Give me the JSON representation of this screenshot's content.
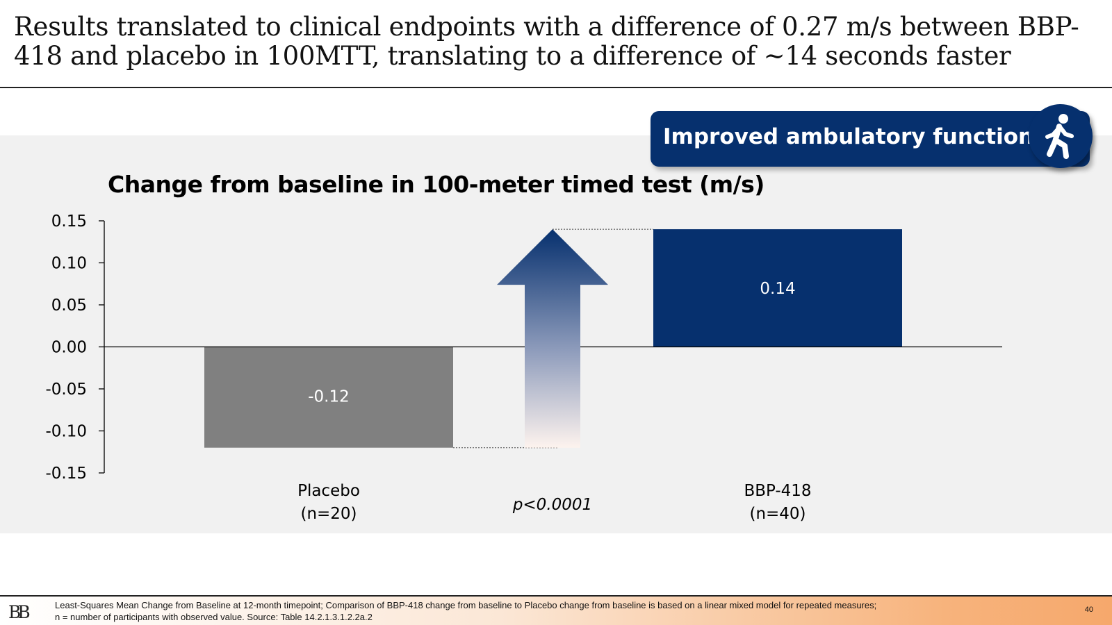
{
  "slide": {
    "title": "Results translated to clinical endpoints with a difference of 0.27 m/s between BBP-418 and placebo in 100MTT, translating to a difference of ~14 seconds faster",
    "callout": "Improved ambulatory function",
    "callout_icon": "walking-person-icon",
    "page_number": "40",
    "logo_text": "BB",
    "footnote_line1": "Least-Squares Mean Change from Baseline at 12-month timepoint; Comparison of BBP-418 change from baseline to Placebo change from baseline is based on a linear mixed model for repeated measures;",
    "footnote_line2": "n = number of participants with observed value. Source: Table 14.2.1.3.1.2.2a.2"
  },
  "colors": {
    "navy": "#06306e",
    "placebo_gray": "#808080",
    "panel": "#f1f1f1"
  },
  "chart_data": {
    "type": "bar",
    "title": "Change from baseline in 100-meter timed test (m/s)",
    "categories": [
      {
        "line1": "Placebo",
        "line2": "(n=20)"
      },
      {
        "line1": "BBP-418",
        "line2": "(n=40)"
      }
    ],
    "values": [
      -0.12,
      0.14
    ],
    "data_labels": [
      "-0.12",
      "0.14"
    ],
    "colors": [
      "#808080",
      "#06306e"
    ],
    "ylim": [
      -0.15,
      0.15
    ],
    "yticks": [
      "0.15",
      "0.10",
      "0.05",
      "0.00",
      "-0.05",
      "-0.10",
      "-0.15"
    ],
    "ytick_values": [
      0.15,
      0.1,
      0.05,
      0.0,
      -0.05,
      -0.1,
      -0.15
    ],
    "annotation": "p<0.0001",
    "grid": false,
    "legend": "none"
  }
}
